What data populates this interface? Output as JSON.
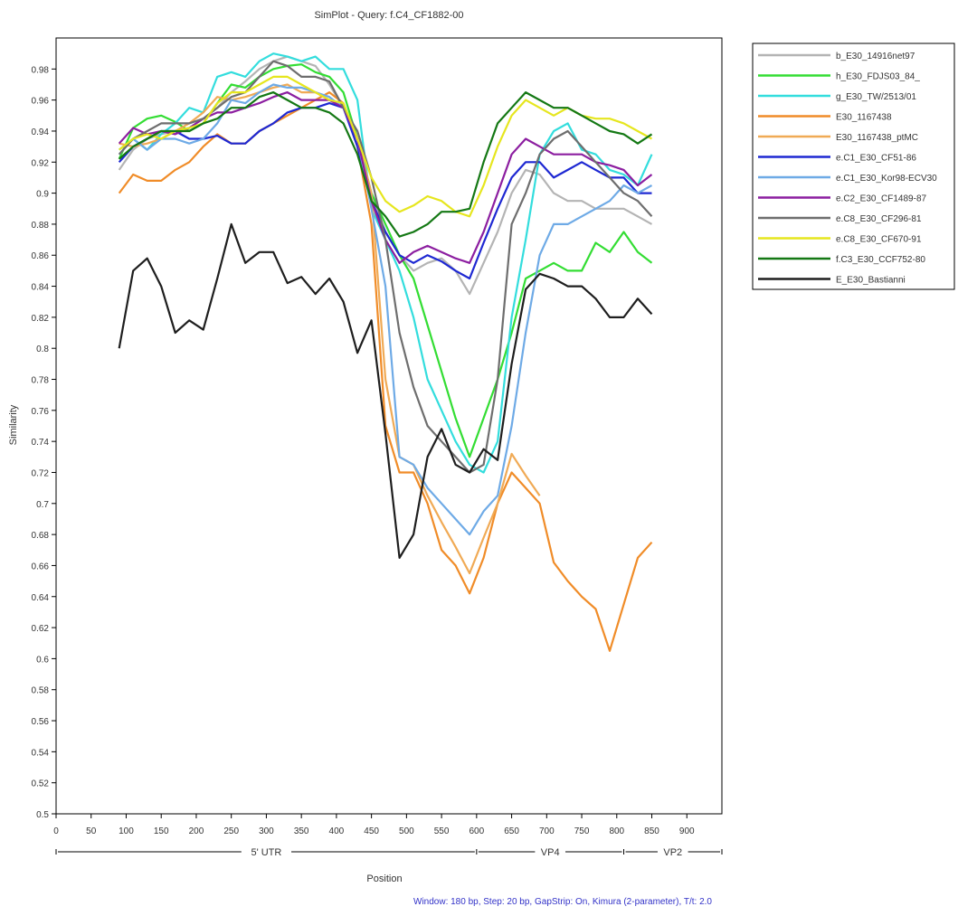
{
  "chart_data": {
    "type": "line",
    "title": "SimPlot - Query: f.C4_CF1882-00",
    "xlabel": "Position",
    "ylabel": "Similarity",
    "footnote": "Window: 180 bp, Step: 20 bp, GapStrip: On, Kimura (2-parameter), T/t: 2.0",
    "xlim": [
      0,
      950
    ],
    "ylim": [
      0.5,
      1.0
    ],
    "xticks": [
      "0",
      "50",
      "100",
      "150",
      "200",
      "250",
      "300",
      "350",
      "400",
      "450",
      "500",
      "550",
      "600",
      "650",
      "700",
      "750",
      "800",
      "850",
      "900"
    ],
    "yticks": [
      "0.5",
      "0.52",
      "0.54",
      "0.56",
      "0.58",
      "0.6",
      "0.62",
      "0.64",
      "0.66",
      "0.68",
      "0.7",
      "0.72",
      "0.74",
      "0.76",
      "0.78",
      "0.8",
      "0.82",
      "0.84",
      "0.86",
      "0.88",
      "0.9",
      "0.92",
      "0.94",
      "0.96",
      "0.98"
    ],
    "regions": [
      {
        "label": "5' UTR",
        "start": 0,
        "end": 600
      },
      {
        "label": "VP4",
        "start": 600,
        "end": 810
      },
      {
        "label": "VP2",
        "start": 810,
        "end": 950
      }
    ],
    "grid": false,
    "legend_position": "right",
    "series": [
      {
        "name": "b_E30_14916net97",
        "color": "#b4b4b4",
        "x": [
          90,
          110,
          130,
          150,
          170,
          190,
          210,
          230,
          250,
          270,
          290,
          310,
          330,
          350,
          370,
          390,
          410,
          430,
          450,
          470,
          490,
          510,
          530,
          550,
          570,
          590,
          610,
          630,
          650,
          670,
          690,
          710,
          730,
          750,
          770,
          790,
          810,
          830,
          850
        ],
        "y": [
          0.915,
          0.928,
          0.935,
          0.938,
          0.94,
          0.942,
          0.948,
          0.955,
          0.965,
          0.972,
          0.98,
          0.985,
          0.988,
          0.985,
          0.982,
          0.97,
          0.955,
          0.935,
          0.9,
          0.875,
          0.86,
          0.85,
          0.855,
          0.858,
          0.85,
          0.835,
          0.855,
          0.875,
          0.9,
          0.915,
          0.912,
          0.9,
          0.895,
          0.895,
          0.89,
          0.89,
          0.89,
          0.885,
          0.88
        ]
      },
      {
        "name": "h_E30_FDJS03_84_",
        "color": "#33dd33",
        "x": [
          90,
          110,
          130,
          150,
          170,
          190,
          210,
          230,
          250,
          270,
          290,
          310,
          330,
          350,
          370,
          390,
          410,
          430,
          450,
          470,
          490,
          510,
          530,
          550,
          570,
          590,
          610,
          630,
          650,
          670,
          690,
          710,
          730,
          750,
          770,
          790,
          810,
          830,
          850
        ],
        "y": [
          0.922,
          0.942,
          0.948,
          0.95,
          0.946,
          0.94,
          0.945,
          0.958,
          0.97,
          0.968,
          0.975,
          0.98,
          0.982,
          0.983,
          0.978,
          0.975,
          0.965,
          0.935,
          0.9,
          0.88,
          0.86,
          0.845,
          0.815,
          0.785,
          0.755,
          0.73,
          0.755,
          0.78,
          0.81,
          0.845,
          0.85,
          0.855,
          0.85,
          0.85,
          0.868,
          0.862,
          0.875,
          0.862,
          0.855
        ]
      },
      {
        "name": "g_E30_TW/2513/01",
        "color": "#33dddd",
        "x": [
          90,
          110,
          130,
          150,
          170,
          190,
          210,
          230,
          250,
          270,
          290,
          310,
          330,
          350,
          370,
          390,
          410,
          430,
          450,
          470,
          490,
          510,
          530,
          550,
          570,
          590,
          610,
          630,
          650,
          670,
          690,
          710,
          730,
          750,
          770,
          790,
          810,
          830,
          850
        ],
        "y": [
          0.928,
          0.935,
          0.928,
          0.938,
          0.945,
          0.955,
          0.952,
          0.975,
          0.978,
          0.975,
          0.985,
          0.99,
          0.988,
          0.985,
          0.988,
          0.98,
          0.98,
          0.96,
          0.89,
          0.87,
          0.85,
          0.82,
          0.78,
          0.76,
          0.74,
          0.725,
          0.72,
          0.74,
          0.82,
          0.87,
          0.925,
          0.94,
          0.945,
          0.928,
          0.925,
          0.915,
          0.912,
          0.905,
          0.925
        ]
      },
      {
        "name": "E30_1167438",
        "color": "#f08c28",
        "x": [
          90,
          110,
          130,
          150,
          170,
          190,
          210,
          230,
          250,
          270,
          290,
          310,
          330,
          350,
          370,
          390,
          410,
          430,
          450,
          470,
          490,
          510,
          530,
          550,
          570,
          590,
          610,
          630,
          650,
          670,
          690,
          710,
          730,
          750,
          770,
          790,
          810,
          830,
          850
        ],
        "y": [
          0.9,
          0.912,
          0.908,
          0.908,
          0.915,
          0.92,
          0.93,
          0.938,
          0.932,
          0.932,
          0.94,
          0.945,
          0.95,
          0.955,
          0.96,
          0.965,
          0.958,
          0.93,
          0.88,
          0.75,
          0.72,
          0.72,
          0.7,
          0.67,
          0.66,
          0.642,
          0.665,
          0.7,
          0.72,
          0.71,
          0.7,
          0.662,
          0.65,
          0.64,
          0.632,
          0.605,
          0.635,
          0.665,
          0.675
        ]
      },
      {
        "name": "E30_1167438_ptMC",
        "color": "#f0aa55",
        "x": [
          90,
          110,
          130,
          150,
          170,
          190,
          210,
          230,
          250,
          270,
          290,
          310,
          330,
          350,
          370,
          390,
          410,
          430,
          450,
          470,
          490,
          510,
          530,
          550,
          570,
          590,
          610,
          630,
          650,
          670,
          690
        ],
        "y": [
          0.932,
          0.93,
          0.932,
          0.935,
          0.94,
          0.945,
          0.952,
          0.962,
          0.96,
          0.962,
          0.965,
          0.968,
          0.97,
          0.965,
          0.965,
          0.96,
          0.955,
          0.935,
          0.9,
          0.78,
          0.73,
          0.725,
          0.705,
          0.688,
          0.672,
          0.655,
          0.678,
          0.7,
          0.732,
          0.718,
          0.705
        ]
      },
      {
        "name": "e.C1_E30_CF51-86",
        "color": "#1e28d2",
        "x": [
          90,
          110,
          130,
          150,
          170,
          190,
          210,
          230,
          250,
          270,
          290,
          310,
          330,
          350,
          370,
          390,
          410,
          430,
          450,
          470,
          490,
          510,
          530,
          550,
          570,
          590,
          610,
          630,
          650,
          670,
          690,
          710,
          730,
          750,
          770,
          790,
          810,
          830,
          850
        ],
        "y": [
          0.92,
          0.93,
          0.935,
          0.94,
          0.94,
          0.935,
          0.935,
          0.937,
          0.932,
          0.932,
          0.94,
          0.945,
          0.952,
          0.955,
          0.955,
          0.958,
          0.955,
          0.93,
          0.895,
          0.875,
          0.86,
          0.855,
          0.86,
          0.856,
          0.85,
          0.845,
          0.868,
          0.89,
          0.91,
          0.92,
          0.92,
          0.91,
          0.915,
          0.92,
          0.915,
          0.91,
          0.91,
          0.9,
          0.9
        ]
      },
      {
        "name": "e.C1_E30_Kor98-ECV30",
        "color": "#6eaae6",
        "x": [
          90,
          110,
          130,
          150,
          170,
          190,
          210,
          230,
          250,
          270,
          290,
          310,
          330,
          350,
          370,
          390,
          410,
          430,
          450,
          470,
          490,
          510,
          530,
          550,
          570,
          590,
          610,
          630,
          650,
          670,
          690,
          710,
          730,
          750,
          770,
          790,
          810,
          830,
          850
        ],
        "y": [
          0.925,
          0.935,
          0.928,
          0.935,
          0.935,
          0.932,
          0.935,
          0.945,
          0.96,
          0.958,
          0.965,
          0.97,
          0.968,
          0.968,
          0.965,
          0.962,
          0.955,
          0.935,
          0.89,
          0.84,
          0.73,
          0.725,
          0.71,
          0.7,
          0.69,
          0.68,
          0.695,
          0.705,
          0.75,
          0.81,
          0.86,
          0.88,
          0.88,
          0.885,
          0.89,
          0.895,
          0.905,
          0.9,
          0.905
        ]
      },
      {
        "name": "e.C2_E30_CF1489-87",
        "color": "#8c1ea0",
        "x": [
          90,
          110,
          130,
          150,
          170,
          190,
          210,
          230,
          250,
          270,
          290,
          310,
          330,
          350,
          370,
          390,
          410,
          430,
          450,
          470,
          490,
          510,
          530,
          550,
          570,
          590,
          610,
          630,
          650,
          670,
          690,
          710,
          730,
          750,
          770,
          790,
          810,
          830,
          850
        ],
        "y": [
          0.932,
          0.942,
          0.938,
          0.94,
          0.938,
          0.942,
          0.948,
          0.952,
          0.952,
          0.955,
          0.958,
          0.962,
          0.965,
          0.96,
          0.96,
          0.96,
          0.955,
          0.935,
          0.895,
          0.87,
          0.855,
          0.862,
          0.866,
          0.862,
          0.858,
          0.855,
          0.875,
          0.9,
          0.925,
          0.935,
          0.93,
          0.925,
          0.925,
          0.925,
          0.92,
          0.918,
          0.915,
          0.905,
          0.912
        ]
      },
      {
        "name": "e.C8_E30_CF296-81",
        "color": "#6e6e6e",
        "x": [
          90,
          110,
          130,
          150,
          170,
          190,
          210,
          230,
          250,
          270,
          290,
          310,
          330,
          350,
          370,
          390,
          410,
          430,
          450,
          470,
          490,
          510,
          530,
          550,
          570,
          590,
          610,
          630,
          650,
          670,
          690,
          710,
          730,
          750,
          770,
          790,
          810,
          830,
          850
        ],
        "y": [
          0.925,
          0.935,
          0.94,
          0.945,
          0.945,
          0.945,
          0.948,
          0.955,
          0.962,
          0.965,
          0.975,
          0.985,
          0.982,
          0.975,
          0.975,
          0.972,
          0.955,
          0.94,
          0.91,
          0.87,
          0.81,
          0.775,
          0.75,
          0.74,
          0.73,
          0.72,
          0.725,
          0.78,
          0.88,
          0.9,
          0.925,
          0.935,
          0.94,
          0.93,
          0.92,
          0.91,
          0.9,
          0.895,
          0.885
        ]
      },
      {
        "name": "e.C8_E30_CF670-91",
        "color": "#e6e61e",
        "x": [
          90,
          110,
          130,
          150,
          170,
          190,
          210,
          230,
          250,
          270,
          290,
          310,
          330,
          350,
          370,
          390,
          410,
          430,
          450,
          470,
          490,
          510,
          530,
          550,
          570,
          590,
          610,
          630,
          650,
          670,
          690,
          710,
          730,
          750,
          770,
          790,
          810,
          830,
          850
        ],
        "y": [
          0.928,
          0.935,
          0.938,
          0.935,
          0.94,
          0.942,
          0.945,
          0.958,
          0.965,
          0.965,
          0.97,
          0.975,
          0.975,
          0.97,
          0.965,
          0.96,
          0.958,
          0.935,
          0.91,
          0.895,
          0.888,
          0.892,
          0.898,
          0.895,
          0.888,
          0.885,
          0.905,
          0.93,
          0.95,
          0.96,
          0.955,
          0.95,
          0.955,
          0.95,
          0.948,
          0.948,
          0.945,
          0.94,
          0.935
        ]
      },
      {
        "name": "f.C3_E30_CCF752-80",
        "color": "#147814",
        "x": [
          90,
          110,
          130,
          150,
          170,
          190,
          210,
          230,
          250,
          270,
          290,
          310,
          330,
          350,
          370,
          390,
          410,
          430,
          450,
          470,
          490,
          510,
          530,
          550,
          570,
          590,
          610,
          630,
          650,
          670,
          690,
          710,
          730,
          750,
          770,
          790,
          810,
          830,
          850
        ],
        "y": [
          0.922,
          0.93,
          0.935,
          0.94,
          0.94,
          0.94,
          0.945,
          0.948,
          0.955,
          0.955,
          0.962,
          0.965,
          0.96,
          0.955,
          0.955,
          0.952,
          0.945,
          0.925,
          0.895,
          0.885,
          0.872,
          0.875,
          0.88,
          0.888,
          0.888,
          0.89,
          0.92,
          0.945,
          0.955,
          0.965,
          0.96,
          0.955,
          0.955,
          0.95,
          0.945,
          0.94,
          0.938,
          0.932,
          0.938
        ]
      },
      {
        "name": "E_E30_Bastianni",
        "color": "#1e1e1e",
        "x": [
          90,
          110,
          130,
          150,
          170,
          190,
          210,
          230,
          250,
          270,
          290,
          310,
          330,
          350,
          370,
          390,
          410,
          430,
          450,
          470,
          490,
          510,
          530,
          550,
          570,
          590,
          610,
          630,
          650,
          670,
          690,
          710,
          730,
          750,
          770,
          790,
          810,
          830,
          850
        ],
        "y": [
          0.8,
          0.85,
          0.858,
          0.84,
          0.81,
          0.818,
          0.812,
          0.845,
          0.88,
          0.855,
          0.862,
          0.862,
          0.842,
          0.846,
          0.835,
          0.845,
          0.83,
          0.797,
          0.818,
          0.745,
          0.665,
          0.68,
          0.73,
          0.748,
          0.725,
          0.72,
          0.735,
          0.728,
          0.79,
          0.838,
          0.848,
          0.845,
          0.84,
          0.84,
          0.832,
          0.82,
          0.82,
          0.832,
          0.822
        ]
      }
    ]
  }
}
